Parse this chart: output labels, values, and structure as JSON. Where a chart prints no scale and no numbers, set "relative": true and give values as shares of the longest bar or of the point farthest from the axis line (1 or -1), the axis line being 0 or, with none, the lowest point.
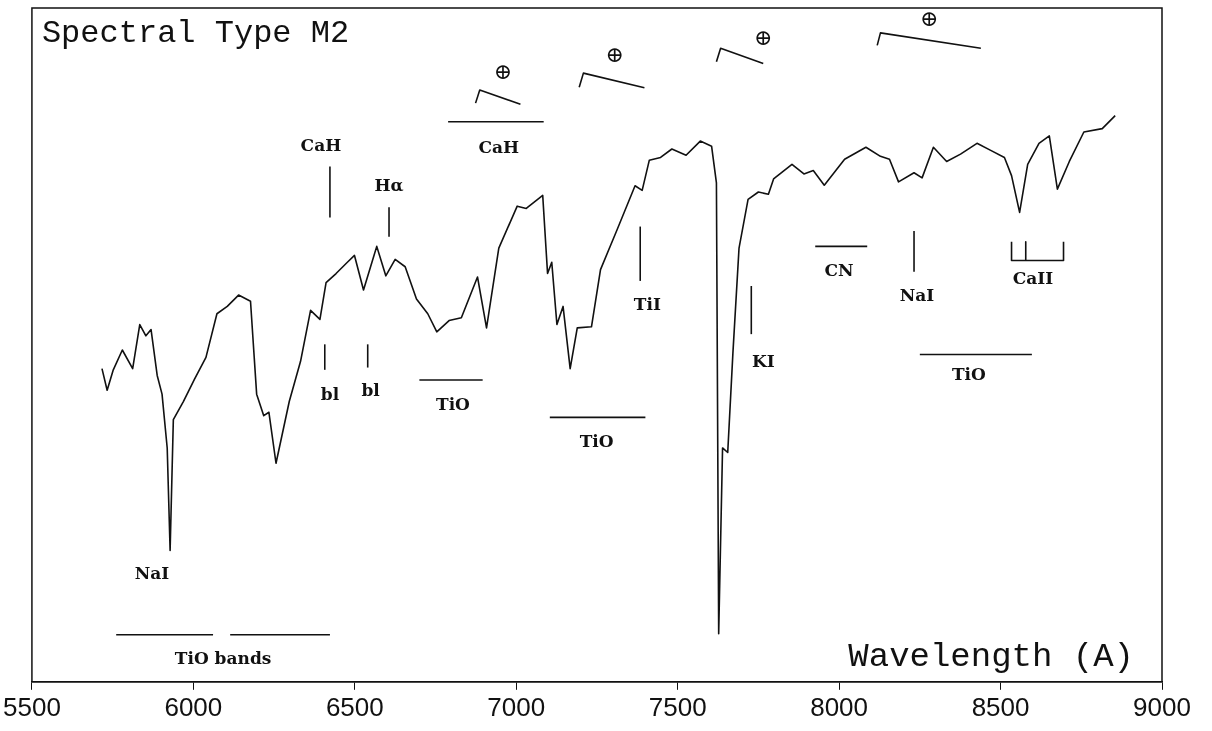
{
  "chart_data": {
    "type": "line",
    "title": "Spectral Type M2",
    "xlabel": "Wavelength (A)",
    "relative": true,
    "xlim": [
      5500,
      9000
    ],
    "xticks": [
      5500,
      6000,
      6500,
      7000,
      7500,
      8000,
      8500,
      9000
    ],
    "tick_labels": "x",
    "series": [
      {
        "color": "#111111",
        "x": [
          5717,
          5733,
          5752,
          5780,
          5812,
          5834,
          5853,
          5869,
          5888,
          5903,
          5919,
          5928,
          5938,
          5969,
          6004,
          6039,
          6073,
          6105,
          6140,
          6177,
          6196,
          6218,
          6234,
          6256,
          6297,
          6332,
          6363,
          6392,
          6411,
          6442,
          6477,
          6499,
          6527,
          6568,
          6596,
          6625,
          6656,
          6691,
          6726,
          6754,
          6792,
          6830,
          6880,
          6908,
          6946,
          7003,
          7031,
          7082,
          7097,
          7110,
          7126,
          7145,
          7167,
          7189,
          7233,
          7261,
          7312,
          7368,
          7390,
          7412,
          7447,
          7482,
          7526,
          7570,
          7605,
          7620,
          7627,
          7639,
          7655,
          7671,
          7690,
          7718,
          7750,
          7781,
          7797,
          7854,
          7891,
          7920,
          7954,
          8017,
          8083,
          8128,
          8156,
          8184,
          8232,
          8257,
          8292,
          8333,
          8376,
          8427,
          8468,
          8512,
          8534,
          8559,
          8584,
          8619,
          8651,
          8676,
          8713,
          8758,
          8815,
          8855
        ],
        "values": [
          0.553,
          0.515,
          0.551,
          0.586,
          0.553,
          0.631,
          0.611,
          0.622,
          0.541,
          0.508,
          0.413,
          0.232,
          0.463,
          0.495,
          0.535,
          0.573,
          0.65,
          0.663,
          0.683,
          0.672,
          0.508,
          0.47,
          0.476,
          0.386,
          0.495,
          0.566,
          0.656,
          0.64,
          0.705,
          0.721,
          0.741,
          0.753,
          0.692,
          0.769,
          0.717,
          0.746,
          0.733,
          0.676,
          0.65,
          0.618,
          0.638,
          0.643,
          0.715,
          0.625,
          0.766,
          0.84,
          0.836,
          0.859,
          0.721,
          0.741,
          0.631,
          0.663,
          0.553,
          0.625,
          0.627,
          0.728,
          0.798,
          0.876,
          0.868,
          0.921,
          0.926,
          0.941,
          0.93,
          0.955,
          0.946,
          0.881,
          0.085,
          0.413,
          0.405,
          0.58,
          0.766,
          0.852,
          0.865,
          0.861,
          0.888,
          0.914,
          0.897,
          0.903,
          0.877,
          0.923,
          0.944,
          0.928,
          0.923,
          0.883,
          0.899,
          0.89,
          0.944,
          0.919,
          0.932,
          0.951,
          0.939,
          0.926,
          0.894,
          0.829,
          0.914,
          0.951,
          0.964,
          0.87,
          0.919,
          0.971,
          0.977,
          1.0
        ]
      }
    ],
    "annotations": [
      "NaI",
      "TiO bands",
      "CaH",
      "Hα",
      "bl",
      "bl",
      "TiO",
      "CaH",
      "TiO",
      "TiI",
      "KI",
      "CN",
      "NaI",
      "CaII",
      "TiO",
      "⊕",
      "⊕",
      "⊕",
      "⊕"
    ]
  }
}
